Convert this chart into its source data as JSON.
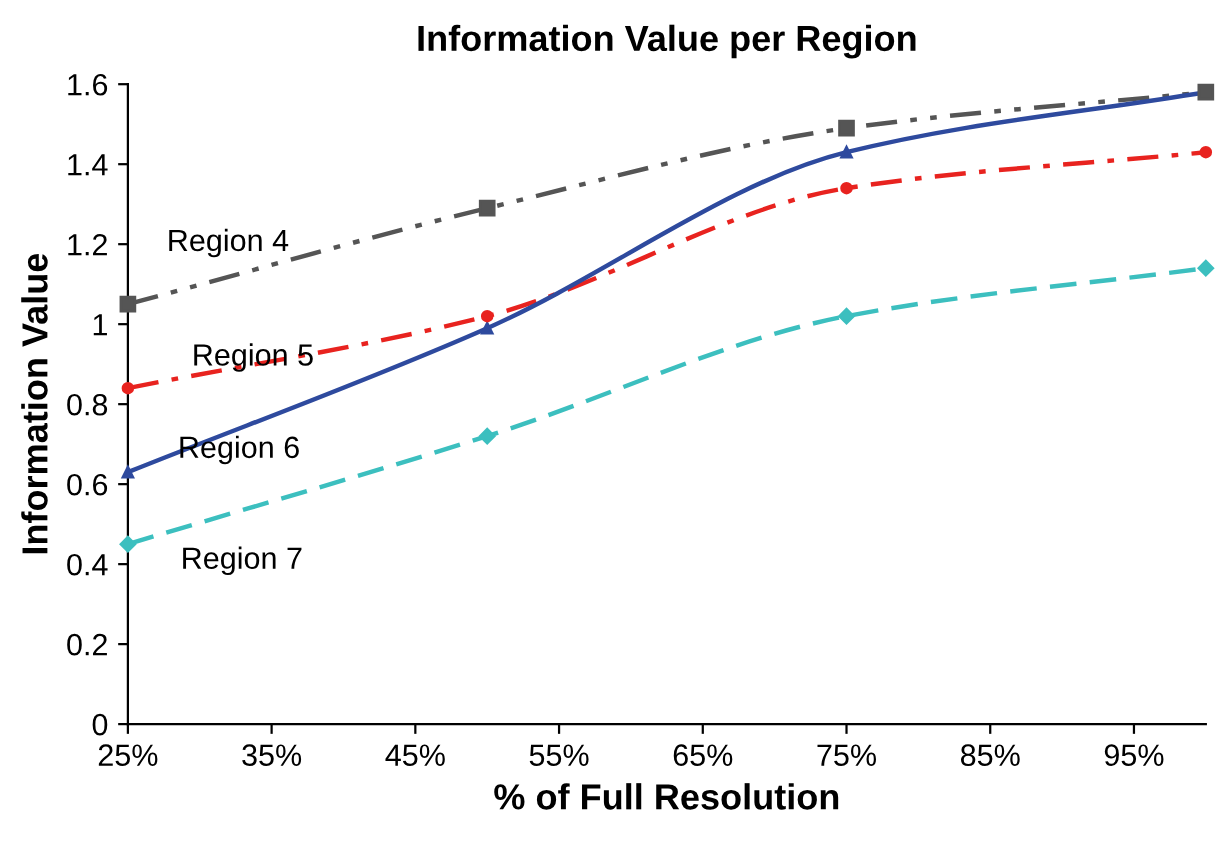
{
  "chart_data": {
    "type": "line",
    "title": "Information Value per Region",
    "xlabel": "% of Full Resolution",
    "ylabel": "Information Value",
    "x": [
      25,
      50,
      75,
      100
    ],
    "series": [
      {
        "name": "Region 4",
        "color": "#555555",
        "line_style": "dashdotdot",
        "marker": "square",
        "values": [
          1.05,
          1.29,
          1.49,
          1.58
        ]
      },
      {
        "name": "Region 5",
        "color": "#e8231f",
        "line_style": "dashdot",
        "marker": "circle",
        "values": [
          0.84,
          1.02,
          1.34,
          1.43
        ]
      },
      {
        "name": "Region 6",
        "color": "#2e4a9e",
        "line_style": "solid",
        "marker": "triangle",
        "values": [
          0.63,
          0.99,
          1.43,
          1.58
        ]
      },
      {
        "name": "Region 7",
        "color": "#3cbfbf",
        "line_style": "dashed",
        "marker": "diamond",
        "values": [
          0.45,
          0.72,
          1.02,
          1.14
        ]
      }
    ],
    "xlim": [
      25,
      100
    ],
    "xticks": [
      {
        "value": 25,
        "label": "25%"
      },
      {
        "value": 35,
        "label": "35%"
      },
      {
        "value": 45,
        "label": "45%"
      },
      {
        "value": 55,
        "label": "55%"
      },
      {
        "value": 65,
        "label": "65%"
      },
      {
        "value": 75,
        "label": "75%"
      },
      {
        "value": 85,
        "label": "85%"
      },
      {
        "value": 95,
        "label": "95%"
      }
    ],
    "ylim": [
      0,
      1.6
    ],
    "yticks": [
      0,
      0.2,
      0.4,
      0.6,
      0.8,
      1,
      1.2,
      1.4,
      1.6
    ],
    "grid": false,
    "legend": false
  }
}
